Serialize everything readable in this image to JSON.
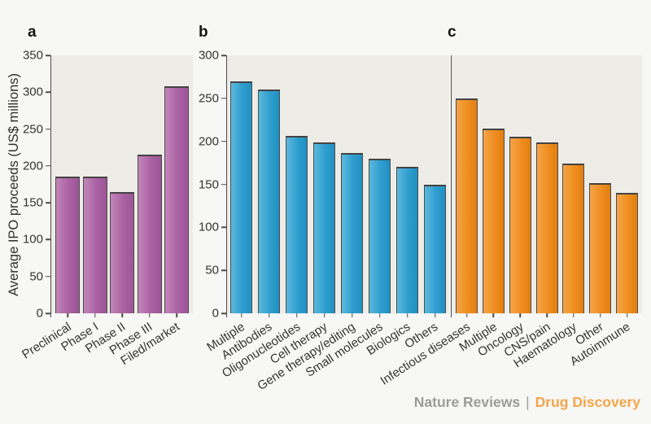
{
  "y_axis_title": "Average IPO proceeds (US$ millions)",
  "figure_footer": {
    "journal": "Nature Reviews",
    "separator": "|",
    "title": "Drug Discovery"
  },
  "colors": {
    "page_bg": "#f7f7f5",
    "plot_bg": "#edece7",
    "axis": "#4b4b4b",
    "footer_gray": "#9b9b9b",
    "footer_orange": "#f3a54a",
    "purple": {
      "light": "#c286b8",
      "base": "#ab62a4",
      "dark": "#9c5596"
    },
    "blue": {
      "light": "#5cb8dd",
      "base": "#2f9ecf",
      "dark": "#2090c2"
    },
    "orange": {
      "light": "#f4a448",
      "base": "#ef8e1f",
      "dark": "#e27e10"
    }
  },
  "chart_data": [
    {
      "type": "bar",
      "panel": "a",
      "series_color": "purple",
      "categories": [
        "Preclinical",
        "Phase I",
        "Phase II",
        "Phase III",
        "Filed/market"
      ],
      "values": [
        186,
        186,
        165,
        215,
        308
      ],
      "ylabel": "Average IPO proceeds (US$ millions)",
      "xlabel": "",
      "ylim": [
        0,
        350
      ],
      "yticks": [
        0,
        50,
        100,
        150,
        200,
        250,
        300,
        350
      ],
      "show_y_tick_labels": true,
      "grid": false,
      "legend": "none"
    },
    {
      "type": "bar",
      "panel": "b",
      "series_color": "blue",
      "categories": [
        "Multiple",
        "Antibodies",
        "Oligonucleotides",
        "Cell therapy",
        "Gene therapy/editing",
        "Small molecules",
        "Biologics",
        "Others"
      ],
      "values": [
        270,
        260,
        206,
        199,
        186,
        180,
        170,
        150
      ],
      "ylabel": "",
      "xlabel": "",
      "ylim": [
        0,
        300
      ],
      "yticks": [
        0,
        50,
        100,
        150,
        200,
        250,
        300
      ],
      "show_y_tick_labels": true,
      "grid": false,
      "legend": "none"
    },
    {
      "type": "bar",
      "panel": "c",
      "series_color": "orange",
      "categories": [
        "Infectious diseases",
        "Multiple",
        "Oncology",
        "CNS/pain",
        "Haematology",
        "Other",
        "Autoimmune"
      ],
      "values": [
        250,
        215,
        205,
        199,
        174,
        151,
        140
      ],
      "ylabel": "",
      "xlabel": "",
      "ylim": [
        0,
        300
      ],
      "yticks": [],
      "show_y_tick_labels": false,
      "grid": false,
      "legend": "none"
    }
  ]
}
